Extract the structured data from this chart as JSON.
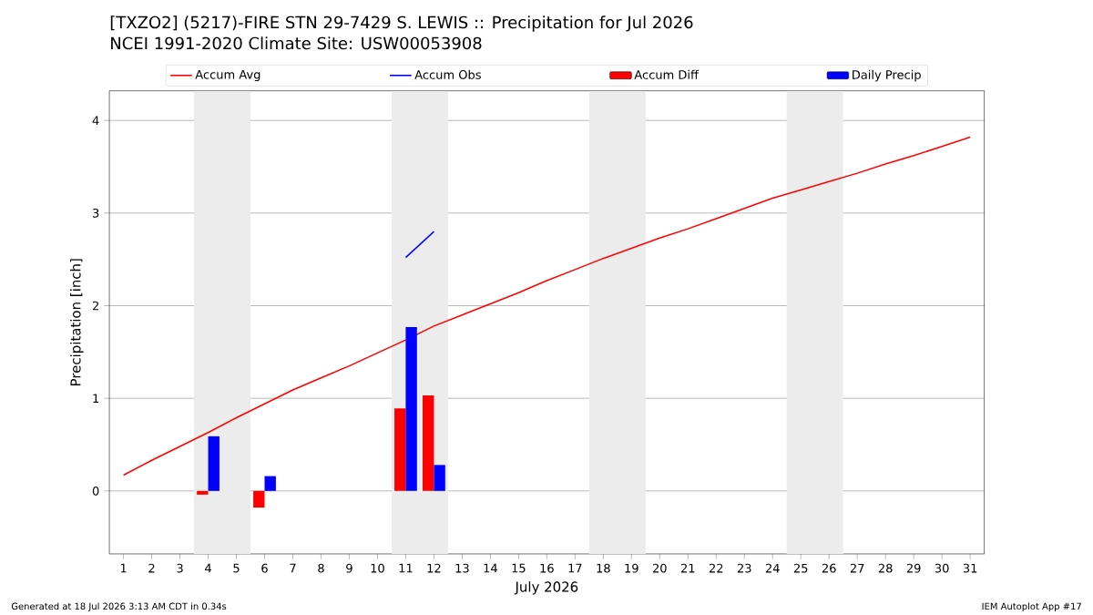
{
  "chart_data": {
    "type": "line",
    "title": "[TXZO2] (5217)-FIRE STN 29-7429 S. LEWIS :: Precipitation for Jul 2026",
    "subtitle": "NCEI 1991-2020 Climate Site: USW00053908",
    "xlabel": "July 2026",
    "ylabel": "Precipitation [inch]",
    "x": [
      1,
      2,
      3,
      4,
      5,
      6,
      7,
      8,
      9,
      10,
      11,
      12,
      13,
      14,
      15,
      16,
      17,
      18,
      19,
      20,
      21,
      22,
      23,
      24,
      25,
      26,
      27,
      28,
      29,
      30,
      31
    ],
    "series": [
      {
        "name": "Accum Avg",
        "color": "#ff0000",
        "values": [
          0.17,
          0.33,
          0.48,
          0.63,
          0.79,
          0.94,
          1.09,
          1.22,
          1.35,
          1.49,
          1.63,
          1.78,
          1.9,
          2.02,
          2.14,
          2.27,
          2.39,
          2.51,
          2.62,
          2.73,
          2.83,
          2.94,
          3.05,
          3.16,
          3.25,
          3.34,
          3.43,
          3.53,
          3.62,
          3.72,
          3.82
        ]
      },
      {
        "name": "Accum Obs",
        "color": "#0000ff",
        "values": [
          null,
          null,
          null,
          null,
          null,
          null,
          null,
          null,
          null,
          null,
          2.52,
          2.8,
          null,
          null,
          null,
          null,
          null,
          null,
          null,
          null,
          null,
          null,
          null,
          null,
          null,
          null,
          null,
          null,
          null,
          null,
          null
        ]
      },
      {
        "name": "Accum Diff",
        "type": "bar",
        "color": "#ff0000",
        "values": [
          null,
          null,
          null,
          -0.04,
          null,
          -0.18,
          null,
          null,
          null,
          null,
          0.89,
          1.03,
          null,
          null,
          null,
          null,
          null,
          null,
          null,
          null,
          null,
          null,
          null,
          null,
          null,
          null,
          null,
          null,
          null,
          null,
          null
        ]
      },
      {
        "name": "Daily Precip",
        "type": "bar",
        "color": "#0000ff",
        "values": [
          null,
          null,
          null,
          0.59,
          null,
          0.16,
          null,
          null,
          null,
          null,
          1.77,
          0.28,
          null,
          null,
          null,
          null,
          null,
          null,
          null,
          null,
          null,
          null,
          null,
          null,
          null,
          null,
          null,
          null,
          null,
          null,
          null
        ]
      }
    ],
    "xlim": [
      0.5,
      31.5
    ],
    "ylim": [
      -0.68,
      4.32
    ],
    "xticks": [
      1,
      2,
      3,
      4,
      5,
      6,
      7,
      8,
      9,
      10,
      11,
      12,
      13,
      14,
      15,
      16,
      17,
      18,
      19,
      20,
      21,
      22,
      23,
      24,
      25,
      26,
      27,
      28,
      29,
      30,
      31
    ],
    "yticks": [
      0,
      1,
      2,
      3,
      4
    ],
    "bands": [
      {
        "axis": "x",
        "from": 3.5,
        "to": 5.5,
        "color": "#ececec"
      },
      {
        "axis": "x",
        "from": 10.5,
        "to": 12.5,
        "color": "#ececec"
      },
      {
        "axis": "x",
        "from": 17.5,
        "to": 19.5,
        "color": "#ececec"
      },
      {
        "axis": "x",
        "from": 24.5,
        "to": 26.5,
        "color": "#ececec"
      }
    ],
    "grid": "y",
    "legend": "top",
    "annotations": [
      "Generated at 18 Jul 2026 3:13 AM CDT in 0.34s",
      "IEM Autoplot App #17"
    ]
  }
}
